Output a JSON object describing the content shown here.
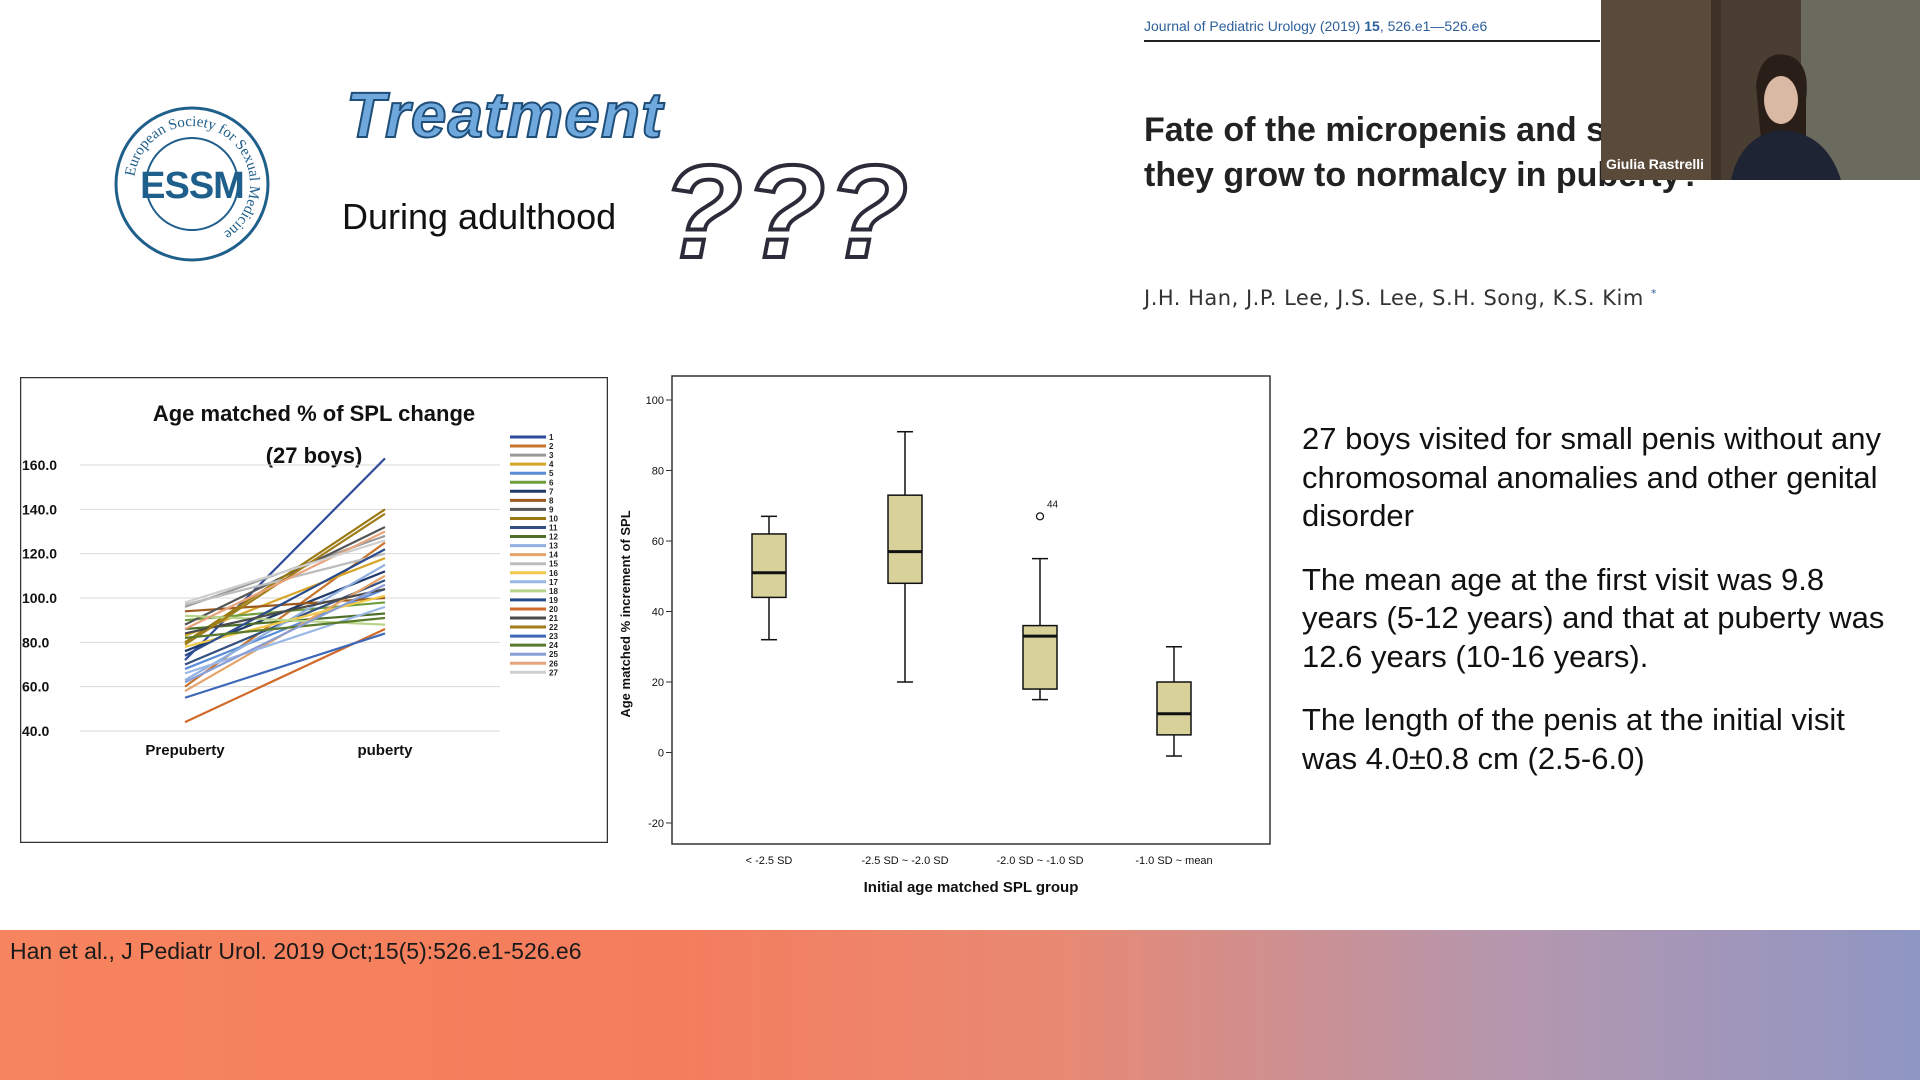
{
  "slide": {
    "logo_text": "European Society for Sexual Medicine",
    "logo_acronym": "ESSM",
    "heading": "Treatment",
    "subheading": "During adulthood",
    "question_marks": "???",
    "footer_citation": "Han et al., J Pediatr Urol. 2019 Oct;15(5):526.e1-526.e6",
    "colors": {
      "heading_fill": "#6fa8dc",
      "logo_blue": "#1f5f8b",
      "footer_start": "#f6845e",
      "footer_end": "#8f96c4"
    }
  },
  "article": {
    "journal_prefix": "Journal of Pediatric Urology (2019) ",
    "journal_volume": "15",
    "journal_pages": ", 526.e1—526.e6",
    "title": "Fate of the micropenis and small penis: do they grow to normalcy in puberty?",
    "authors": "J.H. Han, J.P. Lee, J.S. Lee, S.H. Song, K.S. Kim",
    "authors_mark": "*"
  },
  "video": {
    "participant_name": "Giulia Rastrelli"
  },
  "bullets": [
    "27 boys visited for small penis without any chromosomal anomalies and other genital disorder",
    "The mean age at the first visit was 9.8 years (5-12 years) and that at puberty was 12.6 years (10-16 years).",
    "The length of the penis at the initial visit was 4.0±0.8 cm (2.5-6.0)"
  ],
  "chart_data": [
    {
      "type": "line",
      "title": "Age matched % of SPL change",
      "subtitle": "(27 boys)",
      "categories": [
        "Prepuberty",
        "puberty"
      ],
      "yticks": [
        "160.0",
        "140.0",
        "120.0",
        "100.0",
        "80.0",
        "60.0",
        "40.0"
      ],
      "ylim": [
        40,
        160
      ],
      "grid": true,
      "legend_position": "right",
      "series": [
        {
          "name": "1",
          "color": "#2f4b9a",
          "values": [
            72,
            163
          ]
        },
        {
          "name": "2",
          "color": "#c8742c",
          "values": [
            60,
            125
          ]
        },
        {
          "name": "3",
          "color": "#9a9a9a",
          "values": [
            96,
            128
          ]
        },
        {
          "name": "4",
          "color": "#d6a52a",
          "values": [
            83,
            118
          ]
        },
        {
          "name": "5",
          "color": "#5b8dd6",
          "values": [
            68,
            104
          ]
        },
        {
          "name": "6",
          "color": "#6f9e3c",
          "values": [
            90,
            98
          ]
        },
        {
          "name": "7",
          "color": "#1f3a6b",
          "values": [
            76,
            112
          ]
        },
        {
          "name": "8",
          "color": "#9c5a1e",
          "values": [
            94,
            100
          ]
        },
        {
          "name": "9",
          "color": "#555555",
          "values": [
            88,
            132
          ]
        },
        {
          "name": "10",
          "color": "#9a7a10",
          "values": [
            80,
            140
          ]
        },
        {
          "name": "11",
          "color": "#33507e",
          "values": [
            70,
            108
          ]
        },
        {
          "name": "12",
          "color": "#4d6f2a",
          "values": [
            86,
            93
          ]
        },
        {
          "name": "13",
          "color": "#8fb0e0",
          "values": [
            63,
            115
          ]
        },
        {
          "name": "14",
          "color": "#e4a36a",
          "values": [
            58,
            110
          ]
        },
        {
          "name": "15",
          "color": "#bdbdbd",
          "values": [
            97,
            120
          ]
        },
        {
          "name": "16",
          "color": "#f0c84a",
          "values": [
            78,
            101
          ]
        },
        {
          "name": "17",
          "color": "#9ab8e6",
          "values": [
            66,
            96
          ]
        },
        {
          "name": "18",
          "color": "#b8d48a",
          "values": [
            92,
            88
          ]
        },
        {
          "name": "19",
          "color": "#2b4c8c",
          "values": [
            74,
            122
          ]
        },
        {
          "name": "20",
          "color": "#d06a2a",
          "values": [
            44,
            86
          ]
        },
        {
          "name": "21",
          "color": "#4a4a4a",
          "values": [
            84,
            104
          ]
        },
        {
          "name": "22",
          "color": "#a07d1a",
          "values": [
            79,
            138
          ]
        },
        {
          "name": "23",
          "color": "#3e68b8",
          "values": [
            55,
            84
          ]
        },
        {
          "name": "24",
          "color": "#5a7a2c",
          "values": [
            82,
            91
          ]
        },
        {
          "name": "25",
          "color": "#8a9ed4",
          "values": [
            62,
            106
          ]
        },
        {
          "name": "26",
          "color": "#e7a47c",
          "values": [
            86,
            130
          ]
        },
        {
          "name": "27",
          "color": "#cfcfcf",
          "values": [
            98,
            126
          ]
        }
      ]
    },
    {
      "type": "box",
      "xlabel": "Initial age matched SPL group",
      "ylabel": "Age matched % increment of SPL",
      "ylim": [
        -20,
        100
      ],
      "yticks": [
        "100",
        "80",
        "60",
        "40",
        "20",
        "0",
        "-20"
      ],
      "categories": [
        "< -2.5 SD",
        "-2.5 SD ~ -2.0 SD",
        "-2.0 SD ~ -1.0 SD",
        "-1.0 SD ~ mean"
      ],
      "boxes": [
        {
          "min": 32,
          "q1": 44,
          "median": 51,
          "q3": 62,
          "max": 67
        },
        {
          "min": 20,
          "q1": 48,
          "median": 57,
          "q3": 73,
          "max": 91
        },
        {
          "min": 15,
          "q1": 18,
          "median": 33,
          "q3": 36,
          "max": 55
        },
        {
          "min": -1,
          "q1": 5,
          "median": 11,
          "q3": 20,
          "max": 30
        }
      ],
      "outliers": [
        {
          "group": 2,
          "value": 67,
          "label": "44"
        }
      ],
      "box_color": "#d8d29a"
    }
  ]
}
